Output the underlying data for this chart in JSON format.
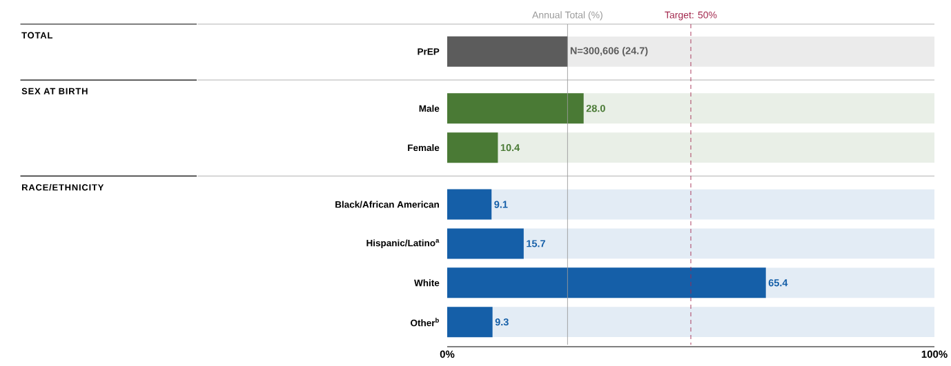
{
  "chart_data": {
    "type": "bar",
    "orientation": "horizontal",
    "categories": [
      "PrEP",
      "Male",
      "Female",
      "Black/African American",
      "Hispanic/Latino$^{a}$",
      "White",
      "Other$^{b}$"
    ],
    "values": [
      24.7,
      28.0,
      10.4,
      9.1,
      15.7,
      65.4,
      9.3
    ],
    "colors": [
      "#5c5c5c",
      "#4a7a35",
      "#4a7a35",
      "#155fa8",
      "#155fa8",
      "#155fa8",
      "#155fa8"
    ],
    "value_labels": [
      "N=300,606 (24.7)",
      "28.0",
      "10.4",
      "9.1",
      "15.7",
      "65.4",
      "9.3"
    ],
    "xlim": [
      0,
      100
    ],
    "xticks": [
      {
        "value": 0,
        "label": "0%"
      },
      {
        "value": 100,
        "label": "100%"
      }
    ],
    "ref_lines": [
      {
        "axis": "x",
        "value": 24.7,
        "label": "Annual Total (%)",
        "color": "#9a9a9a",
        "line_style": "solid"
      },
      {
        "axis": "x",
        "value": 50,
        "label": "Target: 50%",
        "color": "#a3294e",
        "line_style": "dashed"
      }
    ],
    "annotations": [
      "TOTAL",
      "SEX AT BIRTH",
      "RACE/ETHNICITY"
    ]
  }
}
